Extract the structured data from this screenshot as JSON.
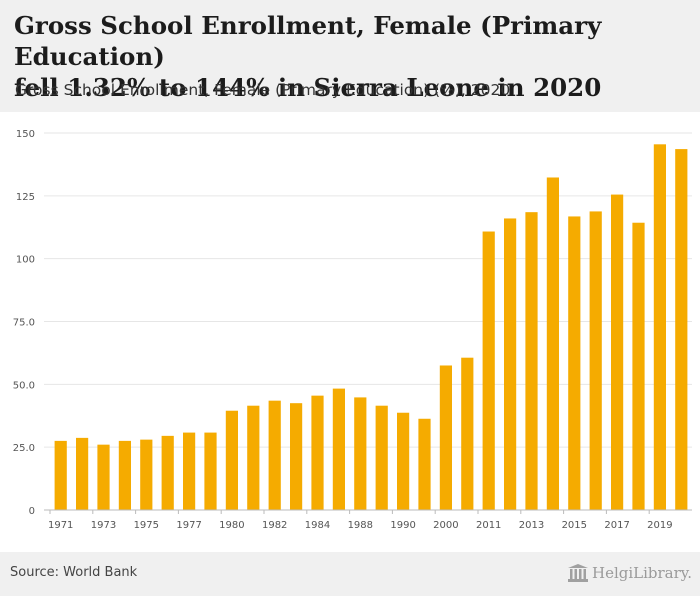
{
  "header": {
    "title_line1": "Gross School Enrollment, Female (Primary Education)",
    "title_line2": "fell 1.32% to 144% in Sierra Leone in 2020",
    "subtitle": "Gross School Enrollment, Female (Primary Education) (%), 2020"
  },
  "footer": {
    "source": "Source: World Bank",
    "logo_text": "HelgiLibrary."
  },
  "colors": {
    "bar": "#f5ab00",
    "grid": "#e6e6e6",
    "axis_text": "#555555"
  },
  "chart_data": {
    "type": "bar",
    "title": "Gross School Enrollment, Female (Primary Education) (%)",
    "xlabel": "",
    "ylabel": "",
    "ylim": [
      0,
      150
    ],
    "yticks": [
      0,
      25.0,
      50.0,
      75.0,
      100,
      125,
      150
    ],
    "ytick_labels": [
      "0",
      "25.0",
      "50.0",
      "75.0",
      "100",
      "125",
      "150"
    ],
    "categories": [
      "1971",
      "1972",
      "1973",
      "1974",
      "1975",
      "1976",
      "1977",
      "1978",
      "1980",
      "1981",
      "1982",
      "1983",
      "1984",
      "1985",
      "1988",
      "1989",
      "1990",
      "1995",
      "2000",
      "2001",
      "2011",
      "2012",
      "2013",
      "2014",
      "2015",
      "2016",
      "2017",
      "2018",
      "2019",
      "2020"
    ],
    "values": [
      27.5,
      28.7,
      26.0,
      27.5,
      28.0,
      29.5,
      30.8,
      30.8,
      39.5,
      41.5,
      43.5,
      42.5,
      45.5,
      48.3,
      44.8,
      41.5,
      38.7,
      36.3,
      57.5,
      60.6,
      110.8,
      116.0,
      118.5,
      132.3,
      116.8,
      118.8,
      125.5,
      114.3,
      145.5,
      143.6
    ],
    "xtick_labels": [
      "1971",
      "1973",
      "1975",
      "1977",
      "1980",
      "1982",
      "1984",
      "1988",
      "1990",
      "2000",
      "2011",
      "2013",
      "2015",
      "2017",
      "2019"
    ]
  }
}
